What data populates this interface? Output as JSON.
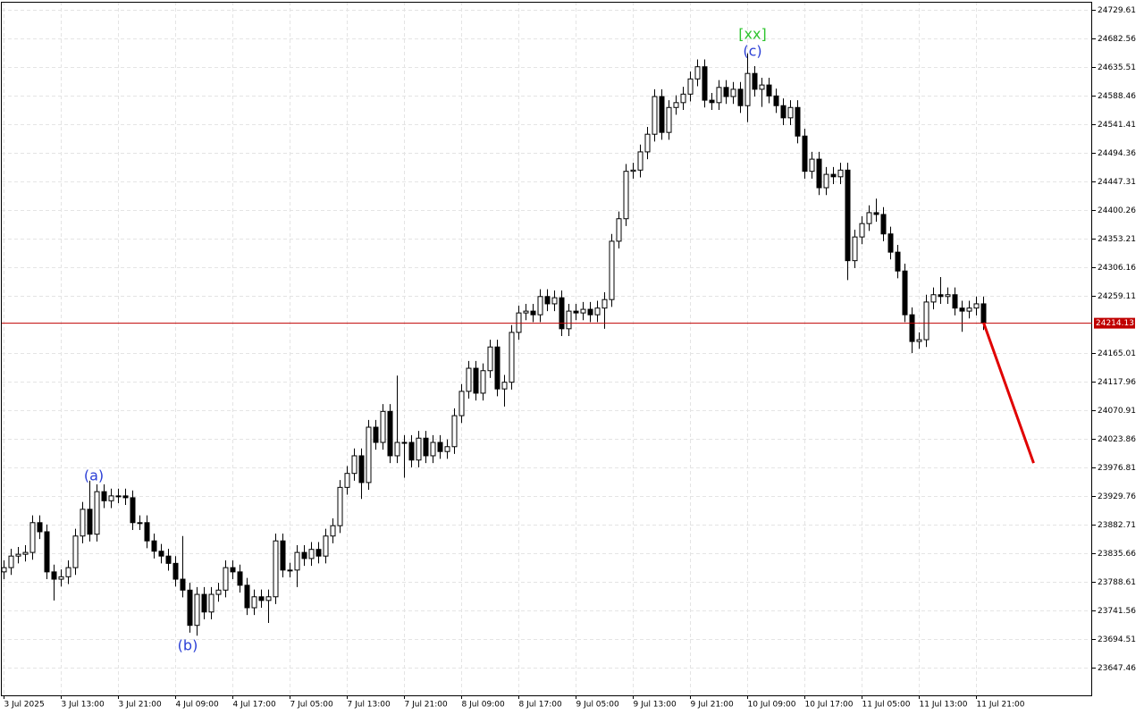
{
  "chart_data": {
    "type": "candlestick",
    "categories": [
      "3 Jul 2025",
      null,
      null,
      null,
      null,
      null,
      null,
      null,
      "3 Jul 13:00",
      null,
      null,
      null,
      null,
      null,
      null,
      null,
      "3 Jul 21:00",
      null,
      null,
      null,
      null,
      null,
      null,
      null,
      "4 Jul 09:00",
      null,
      null,
      null,
      null,
      null,
      null,
      null,
      "4 Jul 17:00",
      null,
      null,
      null,
      null,
      null,
      null,
      null,
      "7 Jul 05:00",
      null,
      null,
      null,
      null,
      null,
      null,
      null,
      "7 Jul 13:00",
      null,
      null,
      null,
      null,
      null,
      null,
      null,
      "7 Jul 21:00",
      null,
      null,
      null,
      null,
      null,
      null,
      null,
      "8 Jul 09:00",
      null,
      null,
      null,
      null,
      null,
      null,
      null,
      "8 Jul 17:00",
      null,
      null,
      null,
      null,
      null,
      null,
      null,
      "9 Jul 05:00",
      null,
      null,
      null,
      null,
      null,
      null,
      null,
      "9 Jul 13:00",
      null,
      null,
      null,
      null,
      null,
      null,
      null,
      "9 Jul 21:00",
      null,
      null,
      null,
      null,
      null,
      null,
      null,
      "10 Jul 09:00",
      null,
      null,
      null,
      null,
      null,
      null,
      null,
      "10 Jul 17:00",
      null,
      null,
      null,
      null,
      null,
      null,
      null,
      "11 Jul 05:00",
      null,
      null,
      null,
      null,
      null,
      null,
      null,
      "11 Jul 13:00",
      null,
      null,
      null,
      null,
      null,
      null,
      null,
      "11 Jul 21:00",
      null
    ],
    "open": [
      23805,
      23812,
      23831,
      23834,
      23837,
      23886,
      23871,
      23805,
      23793,
      23797,
      23812,
      23864,
      23908,
      23867,
      23937,
      23922,
      23930,
      23930,
      23927,
      23886,
      23886,
      23856,
      23839,
      23831,
      23819,
      23793,
      23775,
      23717,
      23768,
      23739,
      23768,
      23775,
      23812,
      23805,
      23783,
      23746,
      23764,
      23758,
      23764,
      23856,
      23808,
      23808,
      23837,
      23827,
      23842,
      23831,
      23864,
      23881,
      23944,
      23967,
      23996,
      23952,
      24043,
      24018,
      24069,
      23996,
      24018,
      24018,
      23989,
      24025,
      23996,
      24018,
      24003,
      24011,
      24062,
      24102,
      24140,
      24099,
      24136,
      24175,
      24106,
      24117,
      24199,
      24231,
      24234,
      24228,
      24258,
      24246,
      24256,
      24205,
      24234,
      24231,
      24237,
      24228,
      24239,
      24253,
      24349,
      24386,
      24464,
      24466,
      24496,
      24525,
      24587,
      24528,
      24569,
      24577,
      24591,
      24616,
      24636,
      24581,
      24577,
      24602,
      24587,
      24599,
      24572,
      24625,
      24599,
      24606,
      24588,
      24572,
      24552,
      24569,
      24522,
      24464,
      24484,
      24437,
      24459,
      24455,
      24466,
      24317,
      24356,
      24378,
      24396,
      24393,
      24361,
      24331,
      24300,
      24228,
      24184,
      24187,
      24249,
      24261,
      24258,
      24261,
      24239,
      24234,
      24239,
      24246
    ],
    "high": [
      23824,
      23843,
      23846,
      23849,
      23898,
      23898,
      23883,
      23817,
      23809,
      23824,
      23876,
      23920,
      23955,
      23949,
      23949,
      23942,
      23942,
      23942,
      23939,
      23898,
      23898,
      23868,
      23851,
      23843,
      23831,
      23864,
      23787,
      23780,
      23780,
      23780,
      23787,
      23824,
      23824,
      23817,
      23795,
      23776,
      23776,
      23776,
      23868,
      23868,
      23820,
      23849,
      23849,
      23854,
      23854,
      23876,
      23893,
      23956,
      23979,
      24008,
      24008,
      24055,
      24055,
      24081,
      24081,
      24128,
      24030,
      24030,
      24037,
      24037,
      24030,
      24030,
      24023,
      24074,
      24114,
      24152,
      24152,
      24148,
      24187,
      24187,
      24129,
      24211,
      24243,
      24246,
      24246,
      24270,
      24270,
      24268,
      24268,
      24246,
      24246,
      24249,
      24249,
      24251,
      24265,
      24361,
      24398,
      24476,
      24478,
      24508,
      24537,
      24599,
      24599,
      24581,
      24589,
      24603,
      24628,
      24648,
      24648,
      24593,
      24614,
      24614,
      24611,
      24611,
      24658,
      24637,
      24618,
      24618,
      24600,
      24584,
      24581,
      24581,
      24534,
      24496,
      24496,
      24471,
      24471,
      24478,
      24478,
      24368,
      24390,
      24408,
      24419,
      24405,
      24373,
      24343,
      24312,
      24240,
      24199,
      24261,
      24273,
      24290,
      24273,
      24273,
      24251,
      24251,
      24258,
      24258
    ],
    "low": [
      23793,
      23800,
      23819,
      23822,
      23825,
      23859,
      23793,
      23758,
      23781,
      23785,
      23800,
      23852,
      23855,
      23855,
      23910,
      23910,
      23918,
      23915,
      23874,
      23874,
      23844,
      23827,
      23819,
      23807,
      23781,
      23763,
      23705,
      23700,
      23727,
      23727,
      23756,
      23763,
      23793,
      23771,
      23734,
      23734,
      23746,
      23721,
      23752,
      23796,
      23796,
      23780,
      23815,
      23815,
      23819,
      23819,
      23852,
      23869,
      23932,
      23955,
      23925,
      23940,
      24006,
      24006,
      23984,
      23984,
      23960,
      23977,
      23977,
      23984,
      23984,
      23991,
      23991,
      23999,
      24050,
      24090,
      24087,
      24087,
      24124,
      24094,
      24077,
      24105,
      24187,
      24219,
      24216,
      24216,
      24234,
      24234,
      24193,
      24193,
      24219,
      24219,
      24216,
      24216,
      24205,
      24241,
      24337,
      24374,
      24452,
      24454,
      24484,
      24513,
      24516,
      24516,
      24557,
      24565,
      24579,
      24604,
      24569,
      24565,
      24565,
      24575,
      24575,
      24560,
      24545,
      24587,
      24570,
      24576,
      24560,
      24540,
      24540,
      24510,
      24452,
      24452,
      24425,
      24425,
      24443,
      24443,
      24285,
      24305,
      24344,
      24366,
      24381,
      24349,
      24319,
      24288,
      24216,
      24165,
      24172,
      24175,
      24237,
      24246,
      24246,
      24227,
      24200,
      24222,
      24227,
      24203
    ],
    "close": [
      23812,
      23831,
      23834,
      23837,
      23886,
      23871,
      23805,
      23793,
      23797,
      23812,
      23864,
      23908,
      23867,
      23937,
      23922,
      23930,
      23930,
      23927,
      23886,
      23886,
      23856,
      23839,
      23831,
      23819,
      23793,
      23775,
      23717,
      23768,
      23739,
      23768,
      23775,
      23812,
      23805,
      23783,
      23746,
      23764,
      23758,
      23764,
      23856,
      23808,
      23808,
      23837,
      23827,
      23842,
      23831,
      23864,
      23881,
      23944,
      23967,
      23996,
      23952,
      24043,
      24018,
      24069,
      23996,
      24018,
      24018,
      23989,
      24025,
      23996,
      24018,
      24003,
      24011,
      24062,
      24102,
      24140,
      24099,
      24136,
      24175,
      24106,
      24117,
      24199,
      24231,
      24234,
      24228,
      24258,
      24246,
      24256,
      24205,
      24234,
      24231,
      24237,
      24228,
      24239,
      24253,
      24349,
      24386,
      24464,
      24466,
      24496,
      24525,
      24587,
      24528,
      24569,
      24577,
      24591,
      24616,
      24636,
      24581,
      24577,
      24602,
      24587,
      24599,
      24572,
      24625,
      24599,
      24606,
      24588,
      24572,
      24552,
      24569,
      24522,
      24464,
      24484,
      24437,
      24459,
      24455,
      24466,
      24317,
      24356,
      24378,
      24396,
      24393,
      24361,
      24331,
      24300,
      24228,
      24184,
      24187,
      24249,
      24261,
      24258,
      24261,
      24239,
      24234,
      24239,
      24246,
      24215
    ],
    "current_price": 24214.13,
    "current_price_color": "#c00000",
    "forecast": {
      "x": [
        137,
        144
      ],
      "values": [
        24215,
        23984
      ],
      "color": "#e00000"
    },
    "ylim": [
      23601.9,
      24742.9
    ],
    "yticks": [
      23647.46,
      23694.51,
      23741.56,
      23788.61,
      23835.66,
      23882.71,
      23929.76,
      23976.81,
      24023.86,
      24070.91,
      24117.96,
      24165.01,
      24259.11,
      24306.16,
      24353.21,
      24400.26,
      24447.31,
      24494.36,
      24541.41,
      24588.46,
      24635.51,
      24682.56,
      24729.61
    ],
    "grid": true,
    "annotations": [
      "(a)",
      "(b)",
      "(c)",
      "[xx]"
    ]
  }
}
